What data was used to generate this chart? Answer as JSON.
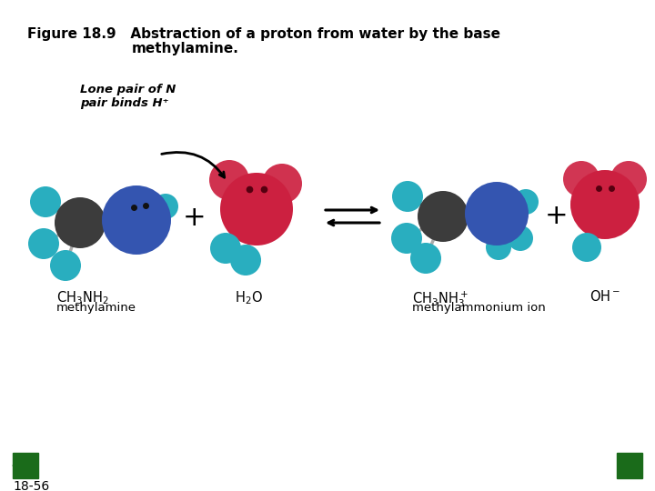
{
  "title_line1": "Figure 18.9   Abstraction of a proton from water by the base",
  "title_line2": "methylamine.",
  "bg_color": "#ffffff",
  "label_18_56": "18-56",
  "lone_pair_label": "Lone pair of N\npair binds H⁺",
  "cyan_color": "#29AEBF",
  "blue_color": "#3455B0",
  "dark_gray": "#3C3C3C",
  "red_color": "#CC2040",
  "green_dark": "#1a6b1a",
  "bond_color": "#aaaaaa",
  "dot_color": "#111111"
}
